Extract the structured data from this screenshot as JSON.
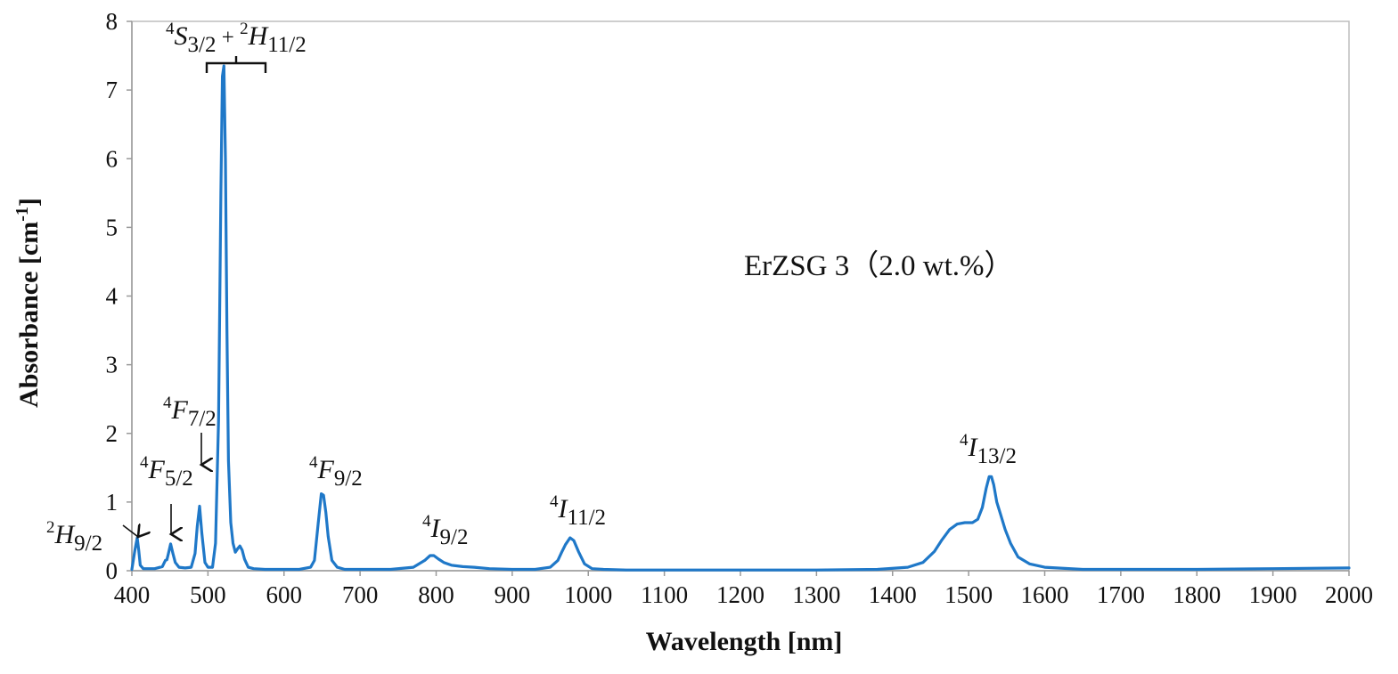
{
  "chart_data": {
    "type": "line",
    "xlabel": "Wavelength [nm]",
    "ylabel_text": "Absorbance [cm",
    "ylabel_sup": "-1",
    "ylabel_close": "]",
    "xlim": [
      400,
      2000
    ],
    "ylim": [
      0,
      8
    ],
    "xticks": [
      "400",
      "500",
      "600",
      "700",
      "800",
      "900",
      "1000",
      "1100",
      "1200",
      "1300",
      "1400",
      "1500",
      "1600",
      "1700",
      "1800",
      "1900",
      "2000"
    ],
    "yticks": [
      "0",
      "1",
      "2",
      "3",
      "4",
      "5",
      "6",
      "7",
      "8"
    ],
    "grid": false,
    "line_color": "#1f78c8",
    "annotation_text": "ErZSG 3（2.0 wt.%）",
    "series": [
      {
        "x": [
          400,
          404,
          407,
          409,
          411,
          415,
          430,
          440,
          444,
          446,
          448,
          451,
          454,
          457,
          462,
          470,
          478,
          483,
          486,
          489,
          492,
          496,
          500,
          506,
          510,
          514,
          517,
          519,
          521,
          523,
          525,
          527,
          530,
          533,
          536,
          539,
          542,
          545,
          548,
          553,
          560,
          575,
          600,
          620,
          635,
          640,
          645,
          649,
          652,
          655,
          658,
          663,
          670,
          680,
          700,
          740,
          770,
          785,
          792,
          797,
          803,
          810,
          820,
          835,
          850,
          870,
          900,
          930,
          950,
          960,
          965,
          970,
          976,
          981,
          987,
          995,
          1005,
          1020,
          1050,
          1100,
          1200,
          1300,
          1380,
          1420,
          1440,
          1455,
          1465,
          1475,
          1485,
          1495,
          1505,
          1512,
          1518,
          1523,
          1527,
          1530,
          1533,
          1537,
          1542,
          1548,
          1555,
          1565,
          1580,
          1600,
          1650,
          1700,
          1800,
          1900,
          2000
        ],
        "y": [
          0.02,
          0.3,
          0.48,
          0.3,
          0.08,
          0.03,
          0.03,
          0.06,
          0.15,
          0.16,
          0.25,
          0.39,
          0.25,
          0.12,
          0.05,
          0.04,
          0.05,
          0.25,
          0.65,
          0.94,
          0.55,
          0.12,
          0.05,
          0.05,
          0.4,
          2.2,
          5.5,
          7.2,
          7.35,
          6.0,
          3.5,
          1.6,
          0.7,
          0.4,
          0.27,
          0.32,
          0.36,
          0.3,
          0.17,
          0.05,
          0.03,
          0.02,
          0.02,
          0.02,
          0.05,
          0.15,
          0.7,
          1.12,
          1.1,
          0.85,
          0.5,
          0.15,
          0.05,
          0.02,
          0.02,
          0.02,
          0.05,
          0.15,
          0.22,
          0.22,
          0.17,
          0.12,
          0.08,
          0.06,
          0.05,
          0.03,
          0.02,
          0.02,
          0.05,
          0.15,
          0.27,
          0.38,
          0.48,
          0.44,
          0.28,
          0.1,
          0.03,
          0.02,
          0.01,
          0.01,
          0.01,
          0.01,
          0.02,
          0.05,
          0.12,
          0.28,
          0.45,
          0.6,
          0.68,
          0.7,
          0.7,
          0.75,
          0.92,
          1.2,
          1.37,
          1.37,
          1.25,
          1.0,
          0.82,
          0.6,
          0.4,
          0.2,
          0.1,
          0.05,
          0.02,
          0.02,
          0.02,
          0.03,
          0.04
        ]
      }
    ],
    "transition_labels": [
      {
        "id": "2H9/2",
        "sup": "2",
        "sym": "H",
        "sub": "9/2"
      },
      {
        "id": "4F5/2",
        "sup": "4",
        "sym": "F",
        "sub": "5/2"
      },
      {
        "id": "4F7/2",
        "sup": "4",
        "sym": "F",
        "sub": "7/2"
      },
      {
        "id": "4S3/2+2H11/2",
        "sup": "4",
        "sym": "S",
        "sub": "3/2",
        "joiner": " + ",
        "sup2": "2",
        "sym2": "H",
        "sub2": "11/2"
      },
      {
        "id": "4F9/2",
        "sup": "4",
        "sym": "F",
        "sub": "9/2"
      },
      {
        "id": "4I9/2",
        "sup": "4",
        "sym": "I",
        "sub": "9/2"
      },
      {
        "id": "4I11/2",
        "sup": "4",
        "sym": "I",
        "sub": "11/2"
      },
      {
        "id": "4I13/2",
        "sup": "4",
        "sym": "I",
        "sub": "13/2"
      }
    ]
  }
}
